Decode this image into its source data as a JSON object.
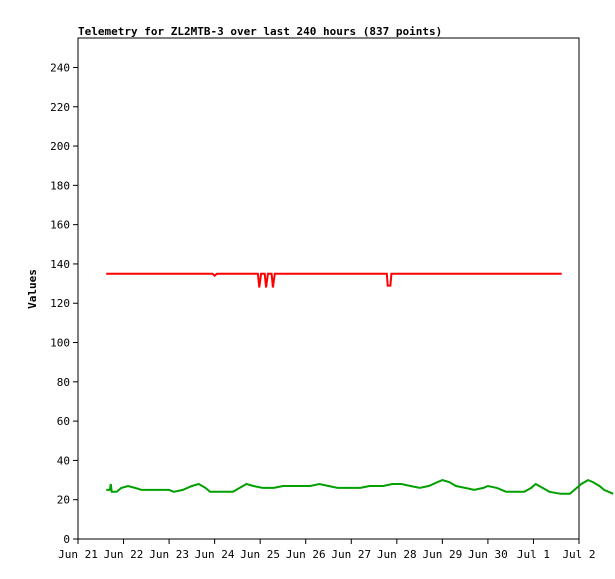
{
  "chart_data": {
    "type": "line",
    "title": "Telemetry for ZL2MTB-3 over last 240 hours (837 points)",
    "xlabel": "",
    "ylabel": "Values",
    "x_range": [
      "Jun 21",
      "Jul 2"
    ],
    "x_ticks": [
      "Jun 21",
      "Jun 22",
      "Jun 23",
      "Jun 24",
      "Jun 25",
      "Jun 26",
      "Jun 27",
      "Jun 28",
      "Jun 29",
      "Jun 30",
      "Jul 1",
      "Jul 2"
    ],
    "ylim": [
      0,
      255
    ],
    "y_ticks": [
      0,
      20,
      40,
      60,
      80,
      100,
      120,
      140,
      160,
      180,
      200,
      220,
      240
    ],
    "grid": false,
    "legend": "none",
    "series": [
      {
        "color": "#ff0000",
        "points": [
          [
            0.62,
            135
          ],
          [
            2.95,
            135
          ],
          [
            3.0,
            134
          ],
          [
            3.05,
            135
          ],
          [
            3.95,
            135
          ],
          [
            3.98,
            128
          ],
          [
            4.02,
            135
          ],
          [
            4.1,
            135
          ],
          [
            4.13,
            128
          ],
          [
            4.17,
            135
          ],
          [
            4.25,
            135
          ],
          [
            4.28,
            128
          ],
          [
            4.32,
            135
          ],
          [
            6.78,
            135
          ],
          [
            6.8,
            129
          ],
          [
            6.86,
            129
          ],
          [
            6.88,
            135
          ],
          [
            10.62,
            135
          ]
        ]
      },
      {
        "color": "#00a000",
        "points": [
          [
            0.62,
            25
          ],
          [
            0.7,
            25
          ],
          [
            0.72,
            28
          ],
          [
            0.74,
            24
          ],
          [
            0.85,
            24
          ],
          [
            0.95,
            26
          ],
          [
            1.1,
            27
          ],
          [
            1.25,
            26
          ],
          [
            1.4,
            25
          ],
          [
            1.6,
            25
          ],
          [
            1.8,
            25
          ],
          [
            2.0,
            25
          ],
          [
            2.1,
            24
          ],
          [
            2.3,
            25
          ],
          [
            2.5,
            27
          ],
          [
            2.65,
            28
          ],
          [
            2.8,
            26
          ],
          [
            2.9,
            24
          ],
          [
            3.2,
            24
          ],
          [
            3.4,
            24
          ],
          [
            3.55,
            26
          ],
          [
            3.7,
            28
          ],
          [
            3.85,
            27
          ],
          [
            4.05,
            26
          ],
          [
            4.3,
            26
          ],
          [
            4.5,
            27
          ],
          [
            4.8,
            27
          ],
          [
            5.1,
            27
          ],
          [
            5.3,
            28
          ],
          [
            5.5,
            27
          ],
          [
            5.7,
            26
          ],
          [
            6.0,
            26
          ],
          [
            6.2,
            26
          ],
          [
            6.4,
            27
          ],
          [
            6.7,
            27
          ],
          [
            6.9,
            28
          ],
          [
            7.1,
            28
          ],
          [
            7.3,
            27
          ],
          [
            7.5,
            26
          ],
          [
            7.7,
            27
          ],
          [
            7.9,
            29
          ],
          [
            8.0,
            30
          ],
          [
            8.15,
            29
          ],
          [
            8.3,
            27
          ],
          [
            8.5,
            26
          ],
          [
            8.7,
            25
          ],
          [
            8.9,
            26
          ],
          [
            9.0,
            27
          ],
          [
            9.2,
            26
          ],
          [
            9.4,
            24
          ],
          [
            9.6,
            24
          ],
          [
            9.8,
            24
          ],
          [
            9.95,
            26
          ],
          [
            10.05,
            28
          ],
          [
            10.2,
            26
          ],
          [
            10.35,
            24
          ],
          [
            10.6,
            23
          ],
          [
            10.8,
            23
          ],
          [
            10.9,
            25
          ],
          [
            11.05,
            28
          ],
          [
            11.2,
            30
          ],
          [
            11.3,
            29
          ],
          [
            11.45,
            27
          ],
          [
            11.55,
            25
          ],
          [
            11.65,
            24
          ],
          [
            11.75,
            23
          ]
        ]
      }
    ]
  }
}
